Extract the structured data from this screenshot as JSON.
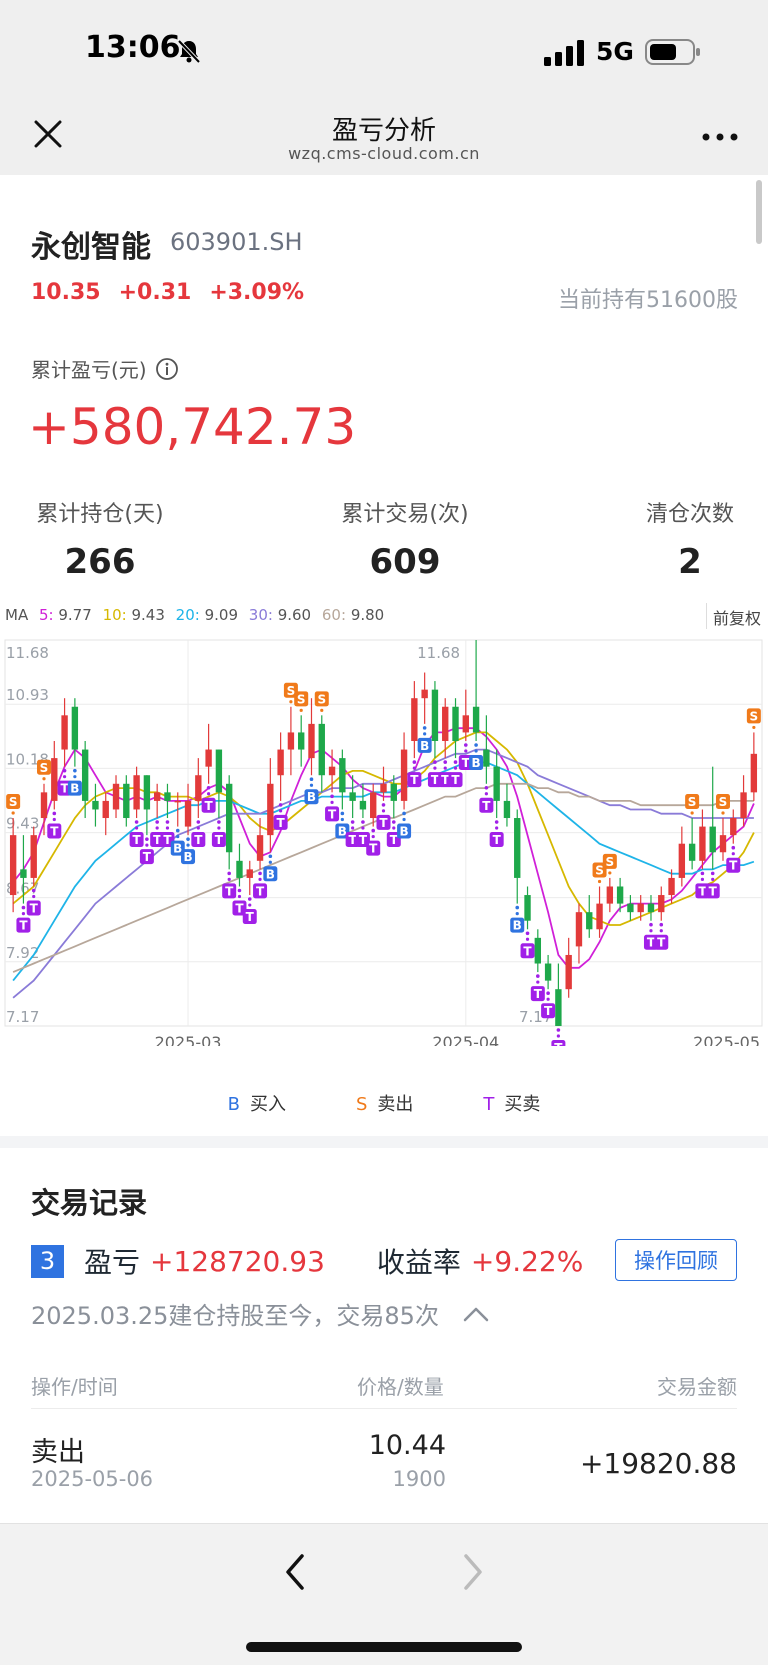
{
  "status_bar": {
    "time": "13:06",
    "network": "5G"
  },
  "nav": {
    "title": "盈亏分析",
    "domain": "wzq.cms-cloud.com.cn"
  },
  "stock": {
    "name": "永创智能",
    "code": "603901.SH",
    "price": "10.35",
    "change": "+0.31",
    "change_pct": "+3.09%",
    "holding": "当前持有51600股"
  },
  "pnl": {
    "label": "累计盈亏(元)",
    "value": "+580,742.73"
  },
  "stats": [
    {
      "label": "累计持仓(天)",
      "value": "266"
    },
    {
      "label": "累计交易(次)",
      "value": "609"
    },
    {
      "label": "清仓次数",
      "value": "2"
    }
  ],
  "ma": {
    "prefix": "MA",
    "items": [
      {
        "key": "5:",
        "value": "9.77",
        "color": "#d020d8"
      },
      {
        "key": "10:",
        "value": "9.43",
        "color": "#d6b800"
      },
      {
        "key": "20:",
        "value": "9.09",
        "color": "#1fb4e8"
      },
      {
        "key": "30:",
        "value": "9.60",
        "color": "#8a7bd8"
      },
      {
        "key": "60:",
        "value": "9.80",
        "color": "#b7a79a"
      }
    ],
    "adjust": "前复权"
  },
  "chart_data": {
    "type": "candlestick",
    "y_ticks": [
      "11.68",
      "10.93",
      "10.18",
      "9.43",
      "8.67",
      "7.92",
      "7.17"
    ],
    "ylim": [
      7.17,
      11.68
    ],
    "x_ticks": [
      "2025-03",
      "2025-04",
      "2025-05"
    ],
    "high_label": "11.68",
    "low_label": "7.17",
    "candles": [
      [
        8.7,
        9.4,
        9.6,
        8.5
      ],
      [
        9.0,
        8.9,
        9.4,
        8.6
      ],
      [
        8.9,
        9.4,
        9.5,
        8.8
      ],
      [
        9.6,
        9.9,
        10.0,
        9.4
      ],
      [
        9.8,
        10.3,
        10.5,
        9.7
      ],
      [
        10.4,
        10.8,
        11.0,
        10.2
      ],
      [
        10.9,
        10.4,
        11.0,
        10.2
      ],
      [
        10.4,
        9.8,
        10.5,
        9.6
      ],
      [
        9.8,
        9.7,
        10.0,
        9.5
      ],
      [
        9.6,
        9.8,
        9.9,
        9.4
      ],
      [
        9.7,
        10.0,
        10.1,
        9.6
      ],
      [
        10.0,
        9.6,
        10.1,
        9.5
      ],
      [
        9.7,
        10.1,
        10.2,
        9.6
      ],
      [
        10.1,
        9.7,
        10.1,
        9.4
      ],
      [
        9.8,
        9.9,
        10.0,
        9.6
      ],
      [
        9.9,
        9.8,
        10.0,
        9.6
      ],
      [
        9.8,
        9.8,
        9.9,
        9.5
      ],
      [
        9.5,
        9.8,
        10.0,
        9.4
      ],
      [
        9.8,
        10.1,
        10.3,
        9.6
      ],
      [
        10.2,
        10.4,
        10.7,
        10.0
      ],
      [
        10.4,
        9.9,
        10.4,
        9.6
      ],
      [
        10.0,
        9.2,
        10.1,
        9.0
      ],
      [
        9.1,
        8.9,
        9.3,
        8.8
      ],
      [
        8.9,
        9.0,
        9.1,
        8.7
      ],
      [
        9.1,
        9.4,
        9.6,
        9.0
      ],
      [
        9.4,
        10.0,
        10.3,
        9.2
      ],
      [
        10.1,
        10.4,
        10.6,
        9.8
      ],
      [
        10.4,
        10.6,
        10.9,
        10.1
      ],
      [
        10.6,
        10.4,
        10.8,
        10.2
      ],
      [
        10.3,
        10.7,
        11.0,
        10.1
      ],
      [
        10.7,
        10.1,
        10.8,
        9.9
      ],
      [
        10.1,
        10.2,
        10.4,
        9.9
      ],
      [
        10.3,
        9.9,
        10.4,
        9.7
      ],
      [
        9.9,
        9.8,
        10.1,
        9.6
      ],
      [
        9.8,
        9.7,
        10.0,
        9.6
      ],
      [
        9.6,
        9.9,
        10.0,
        9.5
      ],
      [
        9.9,
        10.0,
        10.2,
        9.8
      ],
      [
        10.0,
        9.8,
        10.1,
        9.6
      ],
      [
        9.8,
        10.4,
        10.6,
        9.7
      ],
      [
        10.5,
        11.0,
        11.2,
        10.3
      ],
      [
        11.0,
        11.1,
        11.3,
        10.7
      ],
      [
        11.1,
        10.5,
        11.2,
        10.3
      ],
      [
        10.5,
        10.9,
        11.0,
        10.3
      ],
      [
        10.9,
        10.5,
        11.0,
        10.3
      ],
      [
        10.6,
        10.8,
        11.1,
        10.5
      ],
      [
        10.9,
        10.6,
        11.68,
        10.5
      ],
      [
        10.4,
        10.2,
        10.8,
        10.0
      ],
      [
        10.2,
        9.8,
        10.4,
        9.6
      ],
      [
        9.8,
        9.6,
        10.0,
        9.5
      ],
      [
        9.6,
        8.9,
        9.7,
        8.6
      ],
      [
        8.7,
        8.4,
        8.8,
        8.3
      ],
      [
        8.2,
        7.9,
        8.3,
        7.8
      ],
      [
        7.9,
        7.7,
        8.0,
        7.6
      ],
      [
        7.6,
        7.17,
        7.9,
        7.17
      ],
      [
        7.6,
        8.0,
        8.2,
        7.5
      ],
      [
        8.1,
        8.5,
        8.6,
        7.9
      ],
      [
        8.5,
        8.3,
        8.7,
        8.2
      ],
      [
        8.3,
        8.6,
        8.8,
        8.2
      ],
      [
        8.6,
        8.8,
        8.9,
        8.5
      ],
      [
        8.8,
        8.6,
        8.9,
        8.5
      ],
      [
        8.6,
        8.5,
        8.7,
        8.4
      ],
      [
        8.5,
        8.6,
        8.7,
        8.4
      ],
      [
        8.6,
        8.5,
        8.7,
        8.4
      ],
      [
        8.5,
        8.7,
        8.8,
        8.4
      ],
      [
        8.7,
        8.9,
        9.0,
        8.6
      ],
      [
        8.9,
        9.3,
        9.5,
        8.8
      ],
      [
        9.3,
        9.1,
        9.6,
        9.0
      ],
      [
        9.1,
        9.5,
        9.7,
        9.0
      ],
      [
        9.5,
        9.2,
        10.2,
        9.0
      ],
      [
        9.2,
        9.4,
        9.6,
        9.1
      ],
      [
        9.4,
        9.6,
        9.7,
        9.3
      ],
      [
        9.6,
        9.9,
        10.1,
        9.5
      ],
      [
        9.9,
        10.35,
        10.6,
        9.8
      ]
    ],
    "ma_series": [
      {
        "name": "5",
        "color": "#d020d8",
        "values": [
          8.85,
          9.0,
          9.2,
          9.55,
          9.9,
          10.2,
          10.4,
          10.3,
          10.1,
          9.9,
          9.85,
          9.8,
          9.85,
          9.8,
          9.85,
          9.8,
          9.8,
          9.8,
          9.85,
          9.95,
          10.0,
          9.9,
          9.6,
          9.3,
          9.15,
          9.2,
          9.45,
          9.8,
          10.1,
          10.35,
          10.4,
          10.3,
          10.2,
          10.05,
          9.95,
          9.9,
          9.85,
          9.85,
          9.95,
          10.15,
          10.45,
          10.6,
          10.6,
          10.65,
          10.65,
          10.65,
          10.55,
          10.4,
          10.2,
          9.85,
          9.4,
          8.95,
          8.5,
          8.0,
          7.85,
          7.85,
          7.95,
          8.15,
          8.4,
          8.55,
          8.6,
          8.6,
          8.6,
          8.6,
          8.65,
          8.75,
          8.9,
          9.05,
          9.2,
          9.3,
          9.4,
          9.5,
          9.77
        ]
      },
      {
        "name": "10",
        "color": "#d6b800",
        "values": [
          8.6,
          8.7,
          8.8,
          9.0,
          9.2,
          9.4,
          9.6,
          9.75,
          9.85,
          9.9,
          9.95,
          9.95,
          9.95,
          9.9,
          9.9,
          9.85,
          9.85,
          9.85,
          9.8,
          9.85,
          9.9,
          9.85,
          9.75,
          9.6,
          9.5,
          9.45,
          9.5,
          9.6,
          9.7,
          9.8,
          9.9,
          10.0,
          10.1,
          10.15,
          10.15,
          10.1,
          10.05,
          10.0,
          10.0,
          10.05,
          10.15,
          10.3,
          10.4,
          10.5,
          10.55,
          10.6,
          10.6,
          10.5,
          10.4,
          10.25,
          10.0,
          9.7,
          9.4,
          9.1,
          8.8,
          8.6,
          8.45,
          8.4,
          8.35,
          8.35,
          8.4,
          8.45,
          8.5,
          8.55,
          8.6,
          8.65,
          8.7,
          8.8,
          8.85,
          8.95,
          9.05,
          9.2,
          9.43
        ]
      },
      {
        "name": "20",
        "color": "#1fb4e8",
        "values": [
          7.7,
          7.85,
          8.0,
          8.2,
          8.4,
          8.6,
          8.8,
          8.95,
          9.1,
          9.2,
          9.3,
          9.4,
          9.5,
          9.55,
          9.6,
          9.65,
          9.7,
          9.75,
          9.75,
          9.8,
          9.8,
          9.8,
          9.75,
          9.7,
          9.65,
          9.65,
          9.7,
          9.75,
          9.8,
          9.8,
          9.85,
          9.85,
          9.85,
          9.85,
          9.85,
          9.9,
          9.9,
          9.9,
          9.95,
          10.0,
          10.05,
          10.1,
          10.15,
          10.2,
          10.25,
          10.25,
          10.25,
          10.2,
          10.15,
          10.1,
          10.0,
          9.9,
          9.8,
          9.7,
          9.6,
          9.5,
          9.4,
          9.3,
          9.25,
          9.2,
          9.15,
          9.1,
          9.05,
          9.0,
          8.95,
          8.95,
          8.95,
          9.0,
          9.0,
          9.05,
          9.05,
          9.05,
          9.09
        ]
      },
      {
        "name": "30",
        "color": "#8a7bd8",
        "values": [
          7.5,
          7.6,
          7.7,
          7.85,
          8.0,
          8.15,
          8.3,
          8.45,
          8.6,
          8.7,
          8.8,
          8.9,
          9.0,
          9.1,
          9.2,
          9.3,
          9.4,
          9.45,
          9.5,
          9.55,
          9.6,
          9.65,
          9.65,
          9.65,
          9.65,
          9.7,
          9.75,
          9.8,
          9.85,
          9.9,
          9.9,
          9.95,
          9.95,
          9.95,
          10.0,
          10.0,
          10.0,
          10.05,
          10.1,
          10.15,
          10.2,
          10.25,
          10.3,
          10.35,
          10.35,
          10.4,
          10.4,
          10.35,
          10.3,
          10.25,
          10.2,
          10.1,
          10.05,
          10.0,
          9.95,
          9.9,
          9.85,
          9.8,
          9.75,
          9.75,
          9.7,
          9.7,
          9.7,
          9.65,
          9.65,
          9.65,
          9.6,
          9.6,
          9.6,
          9.6,
          9.6,
          9.6,
          9.6
        ]
      },
      {
        "name": "60",
        "color": "#b7a79a",
        "values": [
          7.8,
          7.85,
          7.9,
          7.95,
          8.0,
          8.05,
          8.1,
          8.15,
          8.2,
          8.25,
          8.3,
          8.35,
          8.4,
          8.45,
          8.5,
          8.55,
          8.6,
          8.65,
          8.7,
          8.75,
          8.8,
          8.85,
          8.9,
          8.95,
          9.0,
          9.05,
          9.1,
          9.15,
          9.2,
          9.25,
          9.3,
          9.35,
          9.4,
          9.45,
          9.5,
          9.55,
          9.6,
          9.6,
          9.65,
          9.7,
          9.75,
          9.8,
          9.85,
          9.85,
          9.9,
          9.95,
          9.95,
          10.0,
          10.0,
          10.0,
          10.0,
          9.95,
          9.95,
          9.9,
          9.9,
          9.85,
          9.85,
          9.8,
          9.8,
          9.8,
          9.8,
          9.75,
          9.75,
          9.75,
          9.75,
          9.75,
          9.75,
          9.75,
          9.75,
          9.8,
          9.8,
          9.8,
          9.8
        ]
      }
    ],
    "markers": [
      {
        "i": 0,
        "type": "S"
      },
      {
        "i": 1,
        "type": "T"
      },
      {
        "i": 2,
        "type": "T"
      },
      {
        "i": 3,
        "type": "S"
      },
      {
        "i": 4,
        "type": "T"
      },
      {
        "i": 5,
        "type": "T"
      },
      {
        "i": 6,
        "type": "B"
      },
      {
        "i": 12,
        "type": "T"
      },
      {
        "i": 13,
        "type": "T"
      },
      {
        "i": 14,
        "type": "T"
      },
      {
        "i": 15,
        "type": "T"
      },
      {
        "i": 16,
        "type": "B"
      },
      {
        "i": 17,
        "type": "B"
      },
      {
        "i": 18,
        "type": "T"
      },
      {
        "i": 19,
        "type": "T"
      },
      {
        "i": 20,
        "type": "T"
      },
      {
        "i": 21,
        "type": "T"
      },
      {
        "i": 22,
        "type": "T"
      },
      {
        "i": 23,
        "type": "T"
      },
      {
        "i": 24,
        "type": "T"
      },
      {
        "i": 25,
        "type": "B"
      },
      {
        "i": 26,
        "type": "T"
      },
      {
        "i": 27,
        "type": "S"
      },
      {
        "i": 28,
        "type": "S"
      },
      {
        "i": 29,
        "type": "B"
      },
      {
        "i": 30,
        "type": "S"
      },
      {
        "i": 31,
        "type": "T"
      },
      {
        "i": 32,
        "type": "B"
      },
      {
        "i": 33,
        "type": "T"
      },
      {
        "i": 34,
        "type": "T"
      },
      {
        "i": 35,
        "type": "T"
      },
      {
        "i": 36,
        "type": "T"
      },
      {
        "i": 37,
        "type": "T"
      },
      {
        "i": 38,
        "type": "B"
      },
      {
        "i": 39,
        "type": "T"
      },
      {
        "i": 40,
        "type": "B"
      },
      {
        "i": 41,
        "type": "T"
      },
      {
        "i": 42,
        "type": "T"
      },
      {
        "i": 43,
        "type": "T"
      },
      {
        "i": 44,
        "type": "T"
      },
      {
        "i": 45,
        "type": "B"
      },
      {
        "i": 46,
        "type": "T"
      },
      {
        "i": 47,
        "type": "T"
      },
      {
        "i": 49,
        "type": "B"
      },
      {
        "i": 50,
        "type": "T"
      },
      {
        "i": 51,
        "type": "T"
      },
      {
        "i": 52,
        "type": "T"
      },
      {
        "i": 53,
        "type": "T"
      },
      {
        "i": 57,
        "type": "S"
      },
      {
        "i": 58,
        "type": "S"
      },
      {
        "i": 62,
        "type": "T"
      },
      {
        "i": 63,
        "type": "T"
      },
      {
        "i": 66,
        "type": "S"
      },
      {
        "i": 67,
        "type": "T"
      },
      {
        "i": 68,
        "type": "T"
      },
      {
        "i": 69,
        "type": "S"
      },
      {
        "i": 70,
        "type": "T"
      },
      {
        "i": 72,
        "type": "S"
      }
    ]
  },
  "legend": [
    {
      "key": "B",
      "label": "买入",
      "color": "#2f73e0"
    },
    {
      "key": "S",
      "label": "卖出",
      "color": "#f07a1a"
    },
    {
      "key": "T",
      "label": "买卖",
      "color": "#a120e8"
    }
  ],
  "records": {
    "title": "交易记录",
    "index": "3",
    "pnl_label": "盈亏",
    "pnl_value": "+128720.93",
    "rate_label": "收益率",
    "rate_value": "+9.22%",
    "review_button": "操作回顾",
    "desc": "2025.03.25建仓持股至今，交易85次",
    "headers": {
      "op": "操作/时间",
      "price": "价格/数量",
      "amount": "交易金额"
    },
    "rows": [
      {
        "op": "卖出",
        "date": "2025-05-06",
        "price": "10.44",
        "qty": "1900",
        "amount": "+19820.88"
      }
    ]
  }
}
